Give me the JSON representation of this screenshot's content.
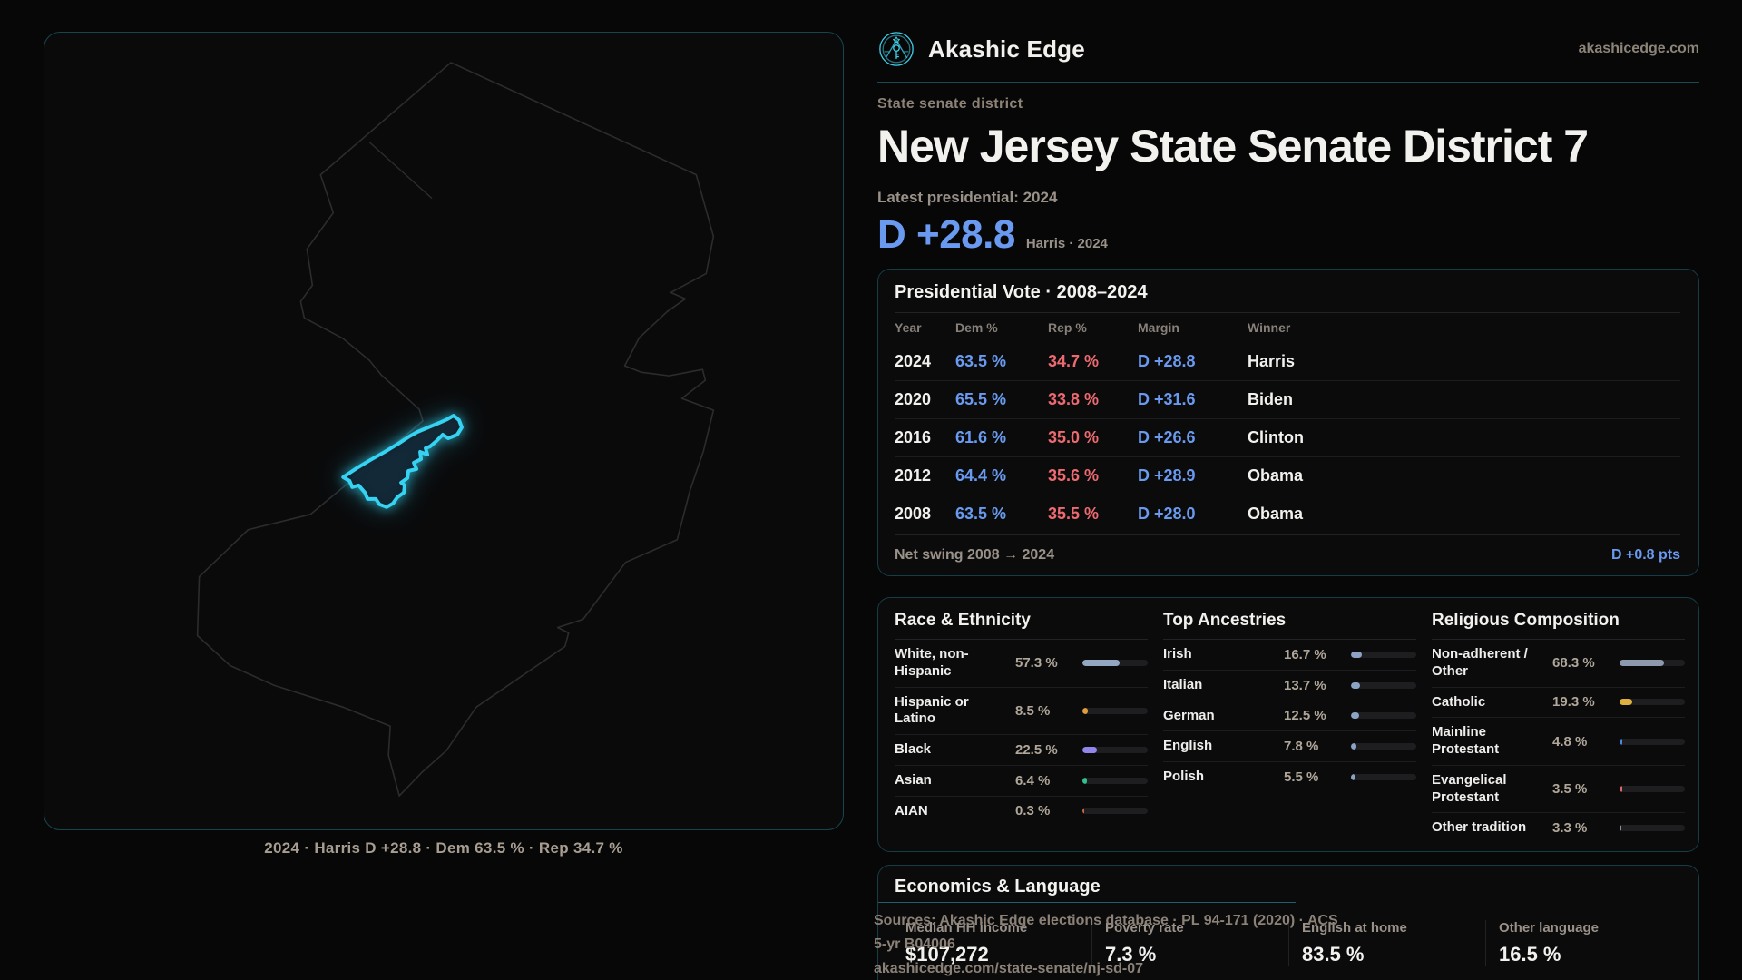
{
  "header": {
    "brand": "Akashic Edge",
    "domain": "akashicedge.com"
  },
  "hero": {
    "kicker": "State senate district",
    "title": "New Jersey State Senate District 7",
    "latest_label": "Latest presidential: 2024",
    "margin": "D +28.8",
    "margin_note": "Harris · 2024"
  },
  "map": {
    "caption": "2024 · Harris D +28.8 · Dem 63.5 % · Rep 34.7 %"
  },
  "colors": {
    "accent_teal": "#35d2f2",
    "dem_blue": "#6a9af0",
    "rep_red": "#ec6a70"
  },
  "pres_table": {
    "title": "Presidential Vote · 2008–2024",
    "columns": [
      "Year",
      "Dem %",
      "Rep %",
      "Margin",
      "Winner"
    ],
    "rows": [
      {
        "year": "2024",
        "dem": "63.5 %",
        "rep": "34.7 %",
        "margin": "D +28.8",
        "winner": "Harris"
      },
      {
        "year": "2020",
        "dem": "65.5 %",
        "rep": "33.8 %",
        "margin": "D +31.6",
        "winner": "Biden"
      },
      {
        "year": "2016",
        "dem": "61.6 %",
        "rep": "35.0 %",
        "margin": "D +26.6",
        "winner": "Clinton"
      },
      {
        "year": "2012",
        "dem": "64.4 %",
        "rep": "35.6 %",
        "margin": "D +28.9",
        "winner": "Obama"
      },
      {
        "year": "2008",
        "dem": "63.5 %",
        "rep": "35.5 %",
        "margin": "D +28.0",
        "winner": "Obama"
      }
    ],
    "net_swing_label": "Net swing 2008 → 2024",
    "net_swing_value": "D +0.8 pts"
  },
  "demographics": {
    "race": {
      "title": "Race & Ethnicity",
      "rows": [
        {
          "label": "White, non-\nHispanic",
          "value": "57.3 %",
          "pct": 57.3,
          "color": "#93a6c2"
        },
        {
          "label": "Hispanic or Latino",
          "value": "8.5 %",
          "pct": 8.5,
          "color": "#e09c3e"
        },
        {
          "label": "Black",
          "value": "22.5 %",
          "pct": 22.5,
          "color": "#9286ea"
        },
        {
          "label": "Asian",
          "value": "6.4 %",
          "pct": 6.4,
          "color": "#31c08d"
        },
        {
          "label": "AIAN",
          "value": "0.3 %",
          "pct": 0.3,
          "color": "#c06a45"
        }
      ]
    },
    "ancestries": {
      "title": "Top Ancestries",
      "rows": [
        {
          "label": "Irish",
          "value": "16.7 %",
          "pct": 16.7,
          "color": "#8ba3c4"
        },
        {
          "label": "Italian",
          "value": "13.7 %",
          "pct": 13.7,
          "color": "#8ba3c4"
        },
        {
          "label": "German",
          "value": "12.5 %",
          "pct": 12.5,
          "color": "#8ba3c4"
        },
        {
          "label": "English",
          "value": "7.8 %",
          "pct": 7.8,
          "color": "#8ba3c4"
        },
        {
          "label": "Polish",
          "value": "5.5 %",
          "pct": 5.5,
          "color": "#8ba3c4"
        }
      ]
    },
    "religion": {
      "title": "Religious Composition",
      "rows": [
        {
          "label": "Non-adherent /\nOther",
          "value": "68.3 %",
          "pct": 68.3,
          "color": "#8d99ad"
        },
        {
          "label": "Catholic",
          "value": "19.3 %",
          "pct": 19.3,
          "color": "#ddb03f"
        },
        {
          "label": "Mainline\nProtestant",
          "value": "4.8 %",
          "pct": 4.8,
          "color": "#4d86e0"
        },
        {
          "label": "Evangelical\nProtestant",
          "value": "3.5 %",
          "pct": 3.5,
          "color": "#dd6666"
        },
        {
          "label": "Other tradition",
          "value": "3.3 %",
          "pct": 3.3,
          "color": "#848e9c"
        }
      ]
    }
  },
  "economics": {
    "title": "Economics & Language",
    "stats": [
      {
        "label": "Median HH income",
        "value": "$107,272"
      },
      {
        "label": "Poverty rate",
        "value": "7.3 %"
      },
      {
        "label": "English at home",
        "value": "83.5 %"
      },
      {
        "label": "Other language",
        "value": "16.5 %"
      }
    ]
  },
  "sources": {
    "line1": "Sources: Akashic Edge elections database · PL 94-171 (2020) · ACS 5-yr B04006",
    "line2": "akashicedge.com/state-senate/nj-sd-07"
  }
}
